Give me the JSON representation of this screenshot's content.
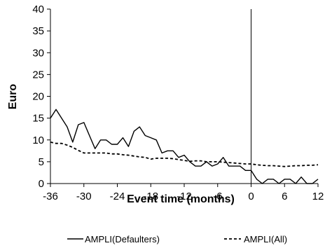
{
  "chart_data": {
    "type": "line",
    "xlabel": "Event time (months)",
    "ylabel": "Euro",
    "xlim": [
      -36,
      12
    ],
    "ylim": [
      0,
      40
    ],
    "x_ticks": [
      -36,
      -30,
      -24,
      -18,
      -12,
      -6,
      0,
      6,
      12
    ],
    "y_ticks": [
      0,
      5,
      10,
      15,
      20,
      25,
      30,
      35,
      40
    ],
    "vertical_line_at": 0,
    "grid": false,
    "legend_position": "bottom",
    "x": [
      -36,
      -35,
      -34,
      -33,
      -32,
      -31,
      -30,
      -29,
      -28,
      -27,
      -26,
      -25,
      -24,
      -23,
      -22,
      -21,
      -20,
      -19,
      -18,
      -17,
      -16,
      -15,
      -14,
      -13,
      -12,
      -11,
      -10,
      -9,
      -8,
      -7,
      -6,
      -5,
      -4,
      -3,
      -2,
      -1,
      0,
      1,
      2,
      3,
      4,
      5,
      6,
      7,
      8,
      9,
      10,
      11,
      12
    ],
    "series": [
      {
        "name": "AMPLI(Defaulters)",
        "style": "solid",
        "color": "#000000",
        "values": [
          15,
          17,
          15,
          13,
          9.5,
          13.5,
          14,
          11,
          8,
          10,
          10,
          9,
          9,
          10.5,
          8.5,
          12,
          13,
          11,
          10.5,
          10,
          7,
          7.5,
          7.5,
          6,
          6.5,
          5,
          4,
          4,
          5,
          4,
          4.5,
          6,
          4,
          4,
          4,
          3,
          3,
          1,
          0,
          1,
          1,
          0,
          1,
          1,
          0,
          1.5,
          0,
          0,
          1
        ]
      },
      {
        "name": "AMPLI(All)",
        "style": "dashed",
        "color": "#000000",
        "values": [
          9.5,
          9.2,
          9.2,
          8.8,
          8.3,
          7.6,
          7.0,
          7.0,
          7.0,
          7.0,
          7.0,
          6.8,
          6.8,
          6.6,
          6.5,
          6.3,
          6.1,
          6.0,
          5.6,
          5.8,
          5.8,
          5.8,
          5.7,
          5.5,
          5.3,
          5.1,
          5.2,
          5.2,
          5.0,
          5.0,
          5.0,
          4.9,
          4.8,
          4.7,
          4.6,
          4.5,
          4.5,
          4.3,
          4.2,
          4.1,
          4.1,
          4.0,
          3.9,
          4.0,
          4.1,
          4.1,
          4.2,
          4.2,
          4.3
        ]
      }
    ]
  }
}
